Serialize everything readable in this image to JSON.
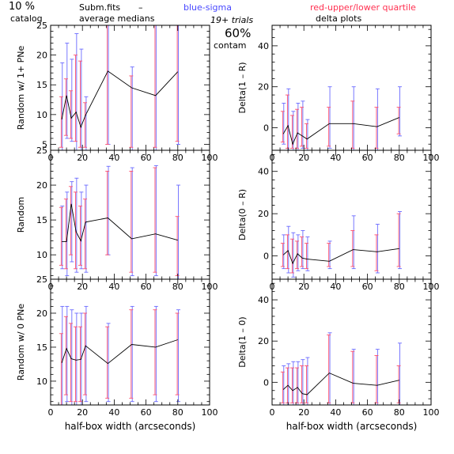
{
  "header": {
    "percent": "10 %",
    "catalog": "catalog",
    "file": "Subm.fits",
    "dash": "–",
    "average": "average medians",
    "blue": "blue-sigma",
    "red": "red-upper/lower quartile",
    "trials": "19+ trials",
    "contam_pct": "60%",
    "contam": "contam",
    "delta_plots": "delta plots"
  },
  "colors": {
    "sigma": "#6a6aff",
    "quartile": "#ff5070",
    "median": "#000000"
  },
  "chart_data": [
    {
      "type": "line",
      "id": "left-top",
      "ylabel": "Random w/ 1+ PNe",
      "xlabel": "",
      "xlim": [
        0,
        100
      ],
      "ylim": [
        4,
        25
      ],
      "xticks": [
        0,
        20,
        40,
        60,
        80,
        100
      ],
      "yticks": [
        5,
        10,
        15,
        20,
        25
      ],
      "x": [
        7,
        10,
        13,
        16,
        19,
        22,
        36,
        51,
        66,
        80
      ],
      "median": [
        9.2,
        13.2,
        9.4,
        10.4,
        7.9,
        9.9,
        17.3,
        14.5,
        13.2,
        17.2
      ],
      "sigma": [
        [
          4,
          18.7
        ],
        [
          6,
          22
        ],
        [
          5.5,
          19.3
        ],
        [
          4,
          23.6
        ],
        [
          4,
          21
        ],
        [
          4,
          13
        ],
        [
          5,
          25
        ],
        [
          4,
          18
        ],
        [
          4,
          25
        ],
        [
          5,
          25
        ]
      ],
      "quartile": [
        [
          4.5,
          13
        ],
        [
          6.5,
          16
        ],
        [
          6,
          14
        ],
        [
          5.5,
          20
        ],
        [
          4.5,
          19
        ],
        [
          4.5,
          12
        ],
        [
          5,
          25
        ],
        [
          4.5,
          16.5
        ],
        [
          4.5,
          25
        ],
        [
          5.5,
          25
        ]
      ]
    },
    {
      "type": "line",
      "id": "left-mid",
      "ylabel": "Random",
      "xlabel": "",
      "xlim": [
        0,
        100
      ],
      "ylim": [
        6.5,
        25
      ],
      "xticks": [
        0,
        20,
        40,
        60,
        80,
        100
      ],
      "yticks": [
        10,
        15,
        20,
        25
      ],
      "x": [
        7,
        10,
        13,
        16,
        19,
        22,
        36,
        51,
        66,
        80
      ],
      "median": [
        11.9,
        11.9,
        17.3,
        13.3,
        12.0,
        14.7,
        15.3,
        12.3,
        13.0,
        12.1
      ],
      "sigma": [
        [
          8,
          17
        ],
        [
          7,
          19
        ],
        [
          9,
          20.5
        ],
        [
          7.5,
          21
        ],
        [
          8,
          19
        ],
        [
          7.5,
          20
        ],
        [
          10,
          22.7
        ],
        [
          7,
          22.5
        ],
        [
          7,
          22.8
        ],
        [
          6.5,
          20
        ]
      ],
      "quartile": [
        [
          8.5,
          16.8
        ],
        [
          8,
          18
        ],
        [
          10,
          19.8
        ],
        [
          8,
          19
        ],
        [
          8.5,
          17
        ],
        [
          8,
          18
        ],
        [
          10,
          22
        ],
        [
          7.5,
          22
        ],
        [
          7.5,
          22.5
        ],
        [
          7,
          15.5
        ]
      ]
    },
    {
      "type": "line",
      "id": "left-bot",
      "ylabel": "Random w/ 0 PNe",
      "xlabel": "half-box width (arcseconds)",
      "xlim": [
        0,
        100
      ],
      "ylim": [
        6.5,
        25
      ],
      "xticks": [
        0,
        20,
        40,
        60,
        80,
        100
      ],
      "yticks": [
        10,
        15,
        20,
        25
      ],
      "x": [
        7,
        10,
        13,
        16,
        19,
        22,
        36,
        51,
        66,
        80
      ],
      "median": [
        12.7,
        14.8,
        13.3,
        13.1,
        13.2,
        15.2,
        12.6,
        15.4,
        15.0,
        16.1
      ],
      "sigma": [
        [
          6.5,
          21
        ],
        [
          7,
          21
        ],
        [
          6.5,
          20.5
        ],
        [
          6.5,
          20
        ],
        [
          6.5,
          20
        ],
        [
          7,
          21
        ],
        [
          7,
          18.5
        ],
        [
          7,
          21
        ],
        [
          7,
          21
        ],
        [
          7,
          20.5
        ]
      ],
      "quartile": [
        [
          6.5,
          17
        ],
        [
          8,
          19.5
        ],
        [
          7,
          18.5
        ],
        [
          7,
          18
        ],
        [
          7,
          18
        ],
        [
          8,
          20
        ],
        [
          7.5,
          18
        ],
        [
          7.5,
          20.5
        ],
        [
          8,
          20.5
        ],
        [
          8,
          20
        ]
      ]
    },
    {
      "type": "line",
      "id": "right-top",
      "ylabel": "Delta(1 – R)",
      "xlabel": "",
      "xlim": [
        0,
        100
      ],
      "ylim": [
        -11,
        50
      ],
      "xticks": [
        0,
        20,
        40,
        60,
        80,
        100
      ],
      "yticks": [
        0,
        20,
        40
      ],
      "x": [
        7,
        10,
        13,
        16,
        19,
        22,
        36,
        51,
        66,
        80
      ],
      "median": [
        -3,
        1,
        -8,
        -2.5,
        -4,
        -5.5,
        2,
        2,
        0.5,
        5
      ],
      "sigma": [
        [
          -8,
          12
        ],
        [
          -11,
          19
        ],
        [
          -11,
          8
        ],
        [
          -11,
          12
        ],
        [
          -10,
          13
        ],
        [
          -11,
          4
        ],
        [
          -10,
          20
        ],
        [
          -11,
          20
        ],
        [
          -11,
          19
        ],
        [
          -4,
          20
        ]
      ],
      "quartile": [
        [
          -7,
          8
        ],
        [
          -10,
          16
        ],
        [
          -10,
          6
        ],
        [
          -10,
          9
        ],
        [
          -9,
          10
        ],
        [
          -10,
          2
        ],
        [
          -9,
          10
        ],
        [
          -10,
          13
        ],
        [
          -10,
          10
        ],
        [
          -3,
          10
        ]
      ]
    },
    {
      "type": "line",
      "id": "right-mid",
      "ylabel": "Delta(0 – R)",
      "xlabel": "",
      "xlim": [
        0,
        100
      ],
      "ylim": [
        -11,
        50
      ],
      "xticks": [
        0,
        20,
        40,
        60,
        80,
        100
      ],
      "yticks": [
        0,
        20,
        40
      ],
      "x": [
        7,
        10,
        13,
        16,
        19,
        22,
        36,
        51,
        66,
        80
      ],
      "median": [
        0.5,
        2.5,
        -3.5,
        1,
        -1,
        -1.5,
        -2.5,
        3,
        2,
        3.5
      ],
      "sigma": [
        [
          -6,
          10
        ],
        [
          -8,
          14
        ],
        [
          -10,
          11
        ],
        [
          -7,
          10
        ],
        [
          -6,
          12
        ],
        [
          -7,
          9
        ],
        [
          -6,
          7
        ],
        [
          -6,
          19
        ],
        [
          -8,
          15
        ],
        [
          -6,
          21
        ]
      ],
      "quartile": [
        [
          -5,
          6
        ],
        [
          -6,
          10
        ],
        [
          -8,
          8
        ],
        [
          -6,
          7
        ],
        [
          -5,
          9
        ],
        [
          -6,
          6
        ],
        [
          -5,
          6
        ],
        [
          -5,
          12
        ],
        [
          -7,
          10
        ],
        [
          -5,
          20
        ]
      ]
    },
    {
      "type": "line",
      "id": "right-bot",
      "ylabel": "Delta(1 – 0)",
      "xlabel": "half-box width (arcseconds)",
      "xlim": [
        0,
        100
      ],
      "ylim": [
        -11,
        50
      ],
      "xticks": [
        0,
        20,
        40,
        60,
        80,
        100
      ],
      "yticks": [
        0,
        20,
        40
      ],
      "x": [
        7,
        10,
        13,
        16,
        19,
        22,
        36,
        51,
        66,
        80
      ],
      "median": [
        -3.5,
        -1.5,
        -4,
        -2.5,
        -5.5,
        -6,
        4.5,
        -0.5,
        -1.5,
        1
      ],
      "sigma": [
        [
          -11,
          8
        ],
        [
          -11,
          9
        ],
        [
          -11,
          10
        ],
        [
          -11,
          10
        ],
        [
          -11,
          11
        ],
        [
          -11,
          12
        ],
        [
          -11,
          24
        ],
        [
          -11,
          16
        ],
        [
          -11,
          16
        ],
        [
          -11,
          19
        ]
      ],
      "quartile": [
        [
          -10,
          5
        ],
        [
          -10,
          7
        ],
        [
          -10,
          7
        ],
        [
          -10,
          7
        ],
        [
          -10,
          8
        ],
        [
          -10,
          8
        ],
        [
          -10,
          23
        ],
        [
          -10,
          15
        ],
        [
          -10,
          13
        ],
        [
          -10,
          8
        ]
      ]
    }
  ]
}
